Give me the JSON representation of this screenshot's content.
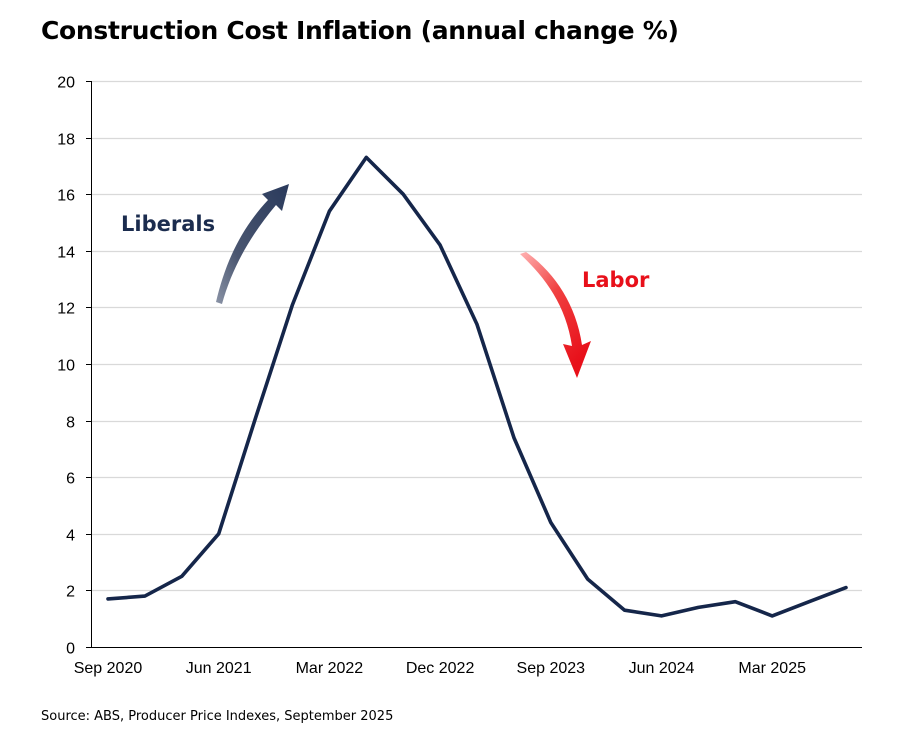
{
  "chart_data": {
    "type": "line",
    "title": "Construction Cost Inflation (annual change %)",
    "xlabel": "",
    "ylabel": "",
    "ylim": [
      0,
      20
    ],
    "yticks": [
      0,
      2,
      4,
      6,
      8,
      10,
      12,
      14,
      16,
      18,
      20
    ],
    "grid": true,
    "legend": "none",
    "x": [
      "Sep 2020",
      "Dec 2020",
      "Mar 2021",
      "Jun 2021",
      "Sep 2021",
      "Dec 2021",
      "Mar 2022",
      "Jun 2022",
      "Sep 2022",
      "Dec 2022",
      "Mar 2023",
      "Jun 2023",
      "Sep 2023",
      "Dec 2023",
      "Mar 2024",
      "Jun 2024",
      "Sep 2024",
      "Dec 2024",
      "Mar 2025",
      "Jun 2025",
      "Sep 2025"
    ],
    "xtick_labels": [
      "Sep 2020",
      "Jun 2021",
      "Mar 2022",
      "Dec 2022",
      "Sep 2023",
      "Jun 2024",
      "Mar 2025"
    ],
    "series": [
      {
        "values": [
          1.7,
          1.8,
          2.5,
          4.0,
          8.1,
          12.1,
          15.4,
          17.3,
          16.0,
          14.2,
          11.4,
          7.4,
          4.4,
          2.4,
          1.3,
          1.1,
          1.4,
          1.6,
          1.1,
          1.6,
          2.1
        ],
        "color": "#15264a"
      }
    ],
    "annotations": [
      {
        "text": "Liberals",
        "color": "#1b2c4e",
        "arrow": "up"
      },
      {
        "text": "Labor",
        "color": "#e8101a",
        "arrow": "down"
      }
    ]
  },
  "source": "Source: ABS, Producer Price Indexes, September 2025"
}
